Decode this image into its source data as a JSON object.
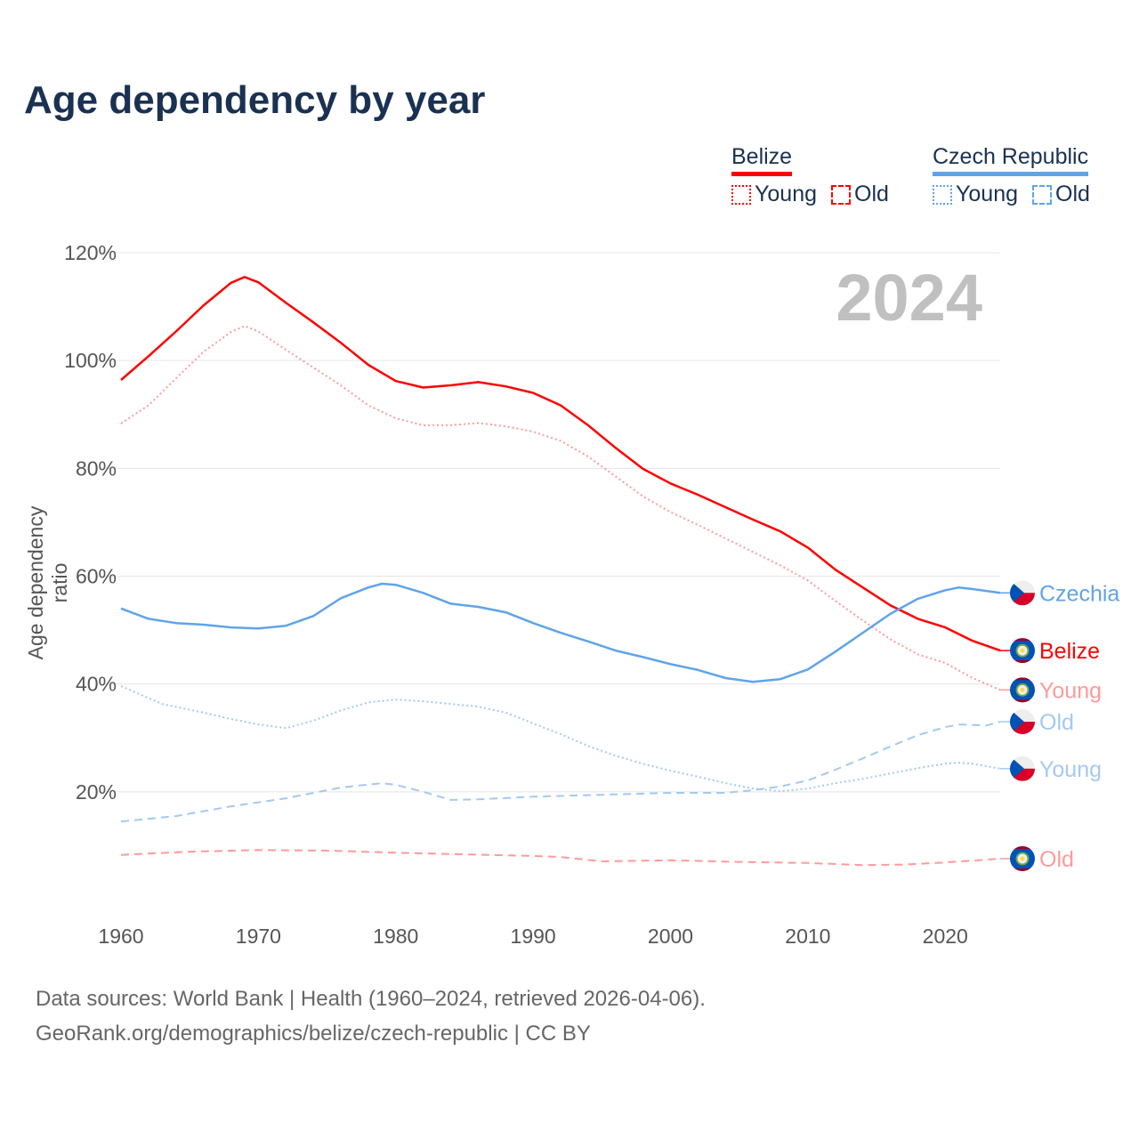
{
  "title": "Age dependency by year",
  "legend": {
    "groups": [
      {
        "name": "Belize",
        "color": "#ff0000",
        "young_label": "Young",
        "old_label": "Old"
      },
      {
        "name": "Czech Republic",
        "color": "#5fa4e8",
        "young_label": "Young",
        "old_label": "Old"
      }
    ]
  },
  "highlight_year": "2024",
  "source_line1": "Data sources: World Bank | Health (1960–2024, retrieved 2026-04-06).",
  "source_line2": "GeoRank.org/demographics/belize/czech-republic | CC BY",
  "chart_data": {
    "type": "line",
    "title": "Age dependency by year",
    "xlabel": "",
    "ylabel": "Age dependency ratio",
    "xlim": [
      1960,
      2024
    ],
    "ylim": [
      0,
      120
    ],
    "x_ticks": [
      "1960",
      "1970",
      "1980",
      "1990",
      "2000",
      "2010",
      "2020"
    ],
    "y_ticks": [
      "20%",
      "40%",
      "60%",
      "80%",
      "100%",
      "120%"
    ],
    "grid": true,
    "series": [
      {
        "name": "Belize",
        "end_label": "Belize",
        "flag": "belize",
        "color": "#ff0000",
        "style": "solid",
        "x": [
          1960,
          1962,
          1964,
          1966,
          1968,
          1969,
          1970,
          1972,
          1974,
          1976,
          1978,
          1980,
          1982,
          1984,
          1986,
          1988,
          1990,
          1992,
          1994,
          1996,
          1998,
          2000,
          2002,
          2004,
          2006,
          2008,
          2010,
          2012,
          2014,
          2016,
          2018,
          2020,
          2022,
          2024
        ],
        "y": [
          96.4,
          100.8,
          105.4,
          110.2,
          114.4,
          115.5,
          114.5,
          110.7,
          107.1,
          103.3,
          99.2,
          96.2,
          95.0,
          95.4,
          96.0,
          95.2,
          94.0,
          91.7,
          88.0,
          83.8,
          79.9,
          77.2,
          75.1,
          72.8,
          70.5,
          68.3,
          65.3,
          61.2,
          57.9,
          54.6,
          52.1,
          50.5,
          48.0,
          46.2
        ]
      },
      {
        "name": "Belize Young",
        "end_label": "Young",
        "flag": "belize",
        "color": "#ff9a9a",
        "style": "dotted",
        "x": [
          1960,
          1962,
          1964,
          1966,
          1968,
          1969,
          1970,
          1972,
          1974,
          1976,
          1978,
          1980,
          1982,
          1984,
          1986,
          1988,
          1990,
          1992,
          1994,
          1996,
          1998,
          2000,
          2002,
          2004,
          2006,
          2008,
          2010,
          2012,
          2014,
          2016,
          2018,
          2020,
          2022,
          2024
        ],
        "y": [
          88.3,
          91.7,
          96.7,
          101.6,
          105.3,
          106.4,
          105.4,
          102.0,
          98.7,
          95.4,
          91.7,
          89.3,
          88.0,
          88.0,
          88.4,
          87.8,
          86.8,
          85.1,
          82.2,
          78.5,
          74.8,
          71.9,
          69.5,
          67.0,
          64.5,
          62.0,
          59.2,
          55.4,
          51.8,
          48.3,
          45.5,
          43.9,
          41.1,
          38.9
        ]
      },
      {
        "name": "Belize Old",
        "end_label": "Old",
        "flag": "belize",
        "color": "#ff9a9a",
        "style": "dashed",
        "x": [
          1960,
          1965,
          1970,
          1975,
          1980,
          1985,
          1990,
          1992,
          1995,
          2000,
          2005,
          2010,
          2014,
          2017,
          2020,
          2024
        ],
        "y": [
          8.3,
          8.9,
          9.2,
          9.1,
          8.7,
          8.4,
          8.1,
          7.9,
          7.1,
          7.3,
          7.0,
          6.8,
          6.4,
          6.5,
          6.9,
          7.6
        ]
      },
      {
        "name": "Czechia",
        "end_label": "Czechia",
        "flag": "czechia",
        "color": "#5fa4e8",
        "style": "solid",
        "x": [
          1960,
          1962,
          1964,
          1966,
          1968,
          1970,
          1972,
          1974,
          1976,
          1978,
          1979,
          1980,
          1982,
          1984,
          1986,
          1988,
          1990,
          1992,
          1994,
          1996,
          1998,
          2000,
          2002,
          2004,
          2006,
          2008,
          2010,
          2012,
          2014,
          2016,
          2018,
          2020,
          2021,
          2022,
          2024
        ],
        "y": [
          54.0,
          52.1,
          51.3,
          51.0,
          50.5,
          50.3,
          50.8,
          52.6,
          55.9,
          57.9,
          58.6,
          58.4,
          56.9,
          54.9,
          54.3,
          53.3,
          51.3,
          49.5,
          47.9,
          46.2,
          45.0,
          43.7,
          42.6,
          41.1,
          40.4,
          40.9,
          42.7,
          46.0,
          49.5,
          53.0,
          55.8,
          57.4,
          57.9,
          57.6,
          56.9
        ]
      },
      {
        "name": "Czechia Young",
        "end_label": "Young",
        "flag": "czechia",
        "color": "#a4c9f1",
        "style": "dotted",
        "x": [
          1960,
          1963,
          1966,
          1968,
          1970,
          1972,
          1974,
          1976,
          1978,
          1980,
          1982,
          1984,
          1986,
          1988,
          1990,
          1992,
          1994,
          1996,
          1998,
          2000,
          2002,
          2004,
          2006,
          2008,
          2010,
          2012,
          2014,
          2016,
          2018,
          2020,
          2021,
          2022,
          2024
        ],
        "y": [
          39.6,
          36.3,
          34.7,
          33.5,
          32.5,
          31.8,
          33.2,
          35.1,
          36.6,
          37.1,
          36.8,
          36.3,
          35.8,
          34.7,
          32.7,
          30.7,
          28.5,
          26.7,
          25.2,
          23.9,
          22.8,
          21.6,
          20.6,
          20.1,
          20.6,
          21.6,
          22.4,
          23.4,
          24.4,
          25.2,
          25.4,
          25.2,
          24.3
        ]
      },
      {
        "name": "Czechia Old",
        "end_label": "Old",
        "flag": "czechia",
        "color": "#a4c9f1",
        "style": "dashed",
        "x": [
          1960,
          1964,
          1968,
          1972,
          1976,
          1979,
          1980,
          1982,
          1984,
          1986,
          1990,
          2000,
          2004,
          2006,
          2008,
          2010,
          2012,
          2014,
          2016,
          2018,
          2020,
          2021,
          2023,
          2024
        ],
        "y": [
          14.5,
          15.5,
          17.3,
          18.8,
          20.8,
          21.6,
          21.3,
          20.0,
          18.5,
          18.6,
          19.1,
          19.8,
          19.8,
          20.3,
          21.0,
          22.1,
          24.1,
          26.2,
          28.4,
          30.5,
          32.0,
          32.5,
          32.3,
          33.0
        ]
      }
    ]
  }
}
